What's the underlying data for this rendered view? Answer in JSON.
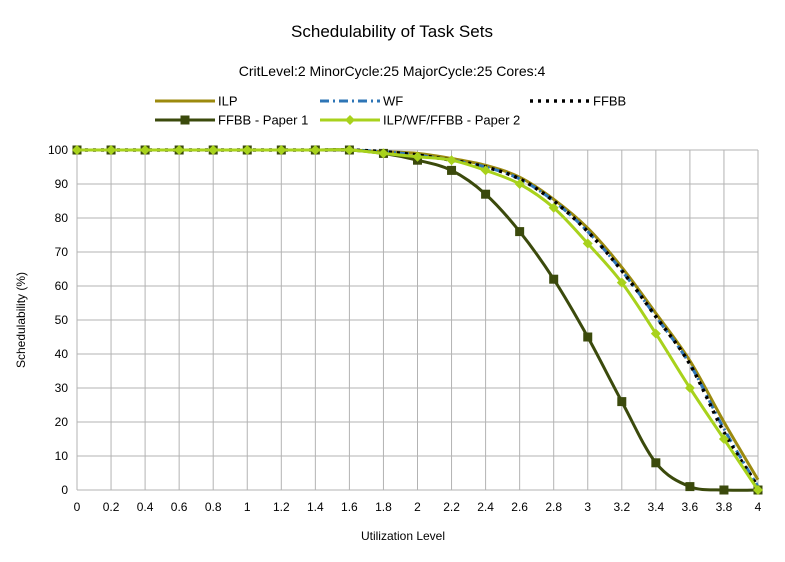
{
  "chart_data": {
    "type": "line",
    "title": "Schedulability of Task Sets",
    "subtitle": "CritLevel:2 MinorCycle:25 MajorCycle:25 Cores:4",
    "xlabel": "Utilization Level",
    "ylabel": "Schedulability (%)",
    "xlim": [
      0,
      4
    ],
    "ylim": [
      0,
      100
    ],
    "x": [
      0,
      0.2,
      0.4,
      0.6,
      0.8,
      1,
      1.2,
      1.4,
      1.6,
      1.8,
      2,
      2.2,
      2.4,
      2.6,
      2.8,
      3,
      3.2,
      3.4,
      3.6,
      3.8,
      4
    ],
    "x_tick_labels": [
      "0",
      "0.2",
      "0.4",
      "0.6",
      "0.8",
      "1",
      "1.2",
      "1.4",
      "1.6",
      "1.8",
      "2",
      "2.2",
      "2.4",
      "2.6",
      "2.8",
      "3",
      "3.2",
      "3.4",
      "3.6",
      "3.8",
      "4"
    ],
    "y_ticks": [
      0,
      10,
      20,
      30,
      40,
      50,
      60,
      70,
      80,
      90,
      100
    ],
    "grid": true,
    "legend_position": "top",
    "series": [
      {
        "name": "ILP",
        "color": "#9c8a0e",
        "style": "solid",
        "marker": "none",
        "values": [
          100,
          100,
          100,
          100,
          100,
          100,
          100,
          100,
          100,
          99.5,
          99,
          97.5,
          95.5,
          92,
          85.5,
          77,
          65.5,
          52,
          38,
          20,
          3
        ]
      },
      {
        "name": "WF",
        "color": "#2e75b6",
        "style": "dashdot",
        "marker": "none",
        "values": [
          100,
          100,
          100,
          100,
          100,
          100,
          100,
          100,
          100,
          99.5,
          98.5,
          97,
          95,
          91.5,
          85,
          76,
          64.5,
          51,
          37,
          18,
          1
        ]
      },
      {
        "name": "FFBB",
        "color": "#000000",
        "style": "dotted",
        "marker": "none",
        "values": [
          100,
          100,
          100,
          100,
          100,
          100,
          100,
          100,
          100,
          99.5,
          98.5,
          97,
          95,
          91.5,
          85,
          76,
          64.5,
          51,
          37,
          17,
          1
        ]
      },
      {
        "name": "FFBB - Paper 1",
        "color": "#3b4a0c",
        "style": "solid",
        "marker": "square",
        "values": [
          100,
          100,
          100,
          100,
          100,
          100,
          100,
          100,
          100,
          99,
          97,
          94,
          87,
          76,
          62,
          45,
          26,
          8,
          1,
          0,
          0
        ]
      },
      {
        "name": "ILP/WF/FFBB - Paper 2",
        "color": "#a8d21c",
        "style": "solid",
        "marker": "diamond",
        "values": [
          100,
          100,
          100,
          100,
          100,
          100,
          100,
          100,
          100,
          99,
          98,
          97,
          94,
          90,
          83,
          72.5,
          61,
          46,
          30,
          15,
          0
        ]
      }
    ]
  }
}
